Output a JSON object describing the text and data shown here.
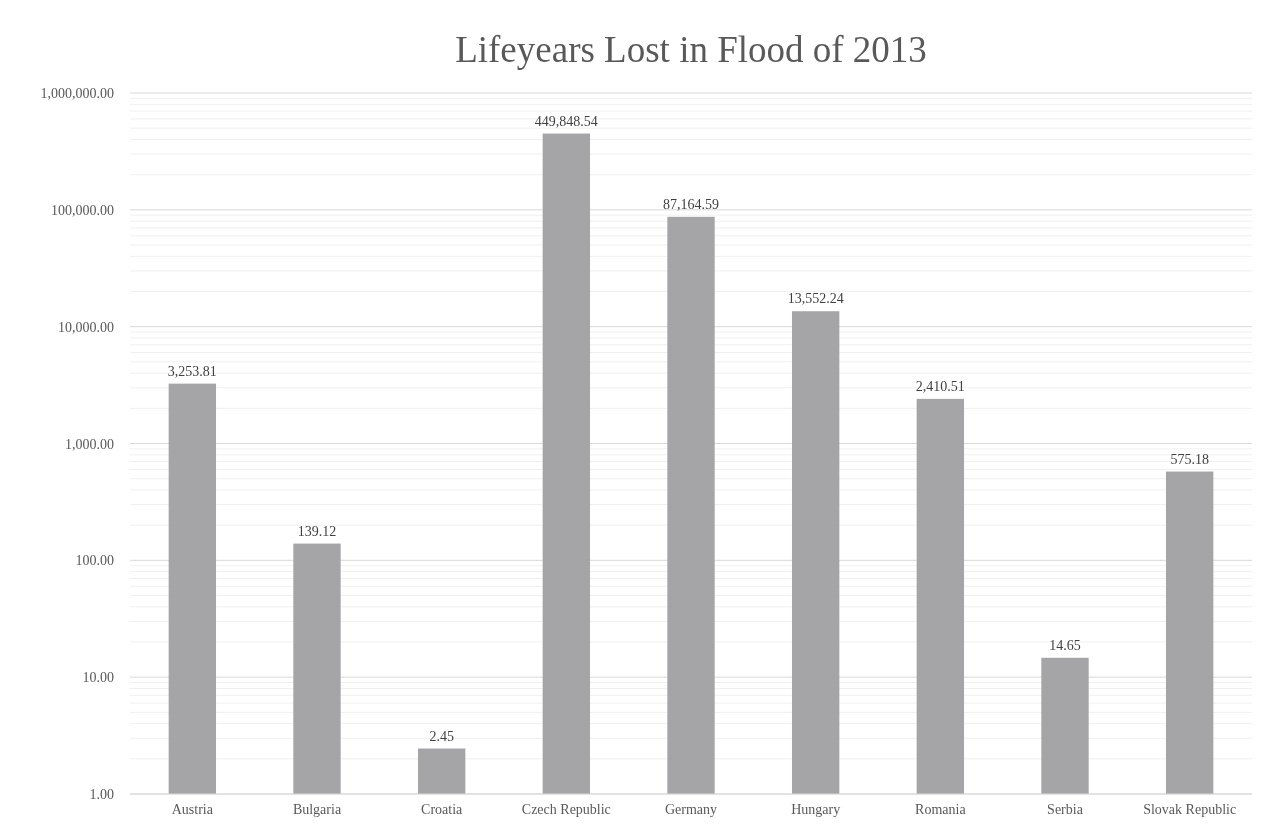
{
  "chart_data": {
    "type": "bar",
    "title": "Lifeyears Lost in Flood of 2013",
    "categories": [
      "Austria",
      "Bulgaria",
      "Croatia",
      "Czech Republic",
      "Germany",
      "Hungary",
      "Romania",
      "Serbia",
      "Slovak Republic"
    ],
    "values": [
      3253.81,
      139.12,
      2.45,
      449848.54,
      87164.59,
      13552.24,
      2410.51,
      14.65,
      575.18
    ],
    "value_labels": [
      "3,253.81",
      "139.12",
      "2.45",
      "449,848.54",
      "87,164.59",
      "13,552.24",
      "2,410.51",
      "14.65",
      "575.18"
    ],
    "color": "#a5a5a7",
    "log": true,
    "grid": true,
    "ylim": [
      1,
      1000000
    ],
    "yticks": [
      {
        "value": 1,
        "label": "1.00"
      },
      {
        "value": 10,
        "label": "10.00"
      },
      {
        "value": 100,
        "label": "100.00"
      },
      {
        "value": 1000,
        "label": "1,000.00"
      },
      {
        "value": 10000,
        "label": "10,000.00"
      },
      {
        "value": 100000,
        "label": "100,000.00"
      },
      {
        "value": 1000000,
        "label": "1,000,000.00"
      }
    ]
  }
}
